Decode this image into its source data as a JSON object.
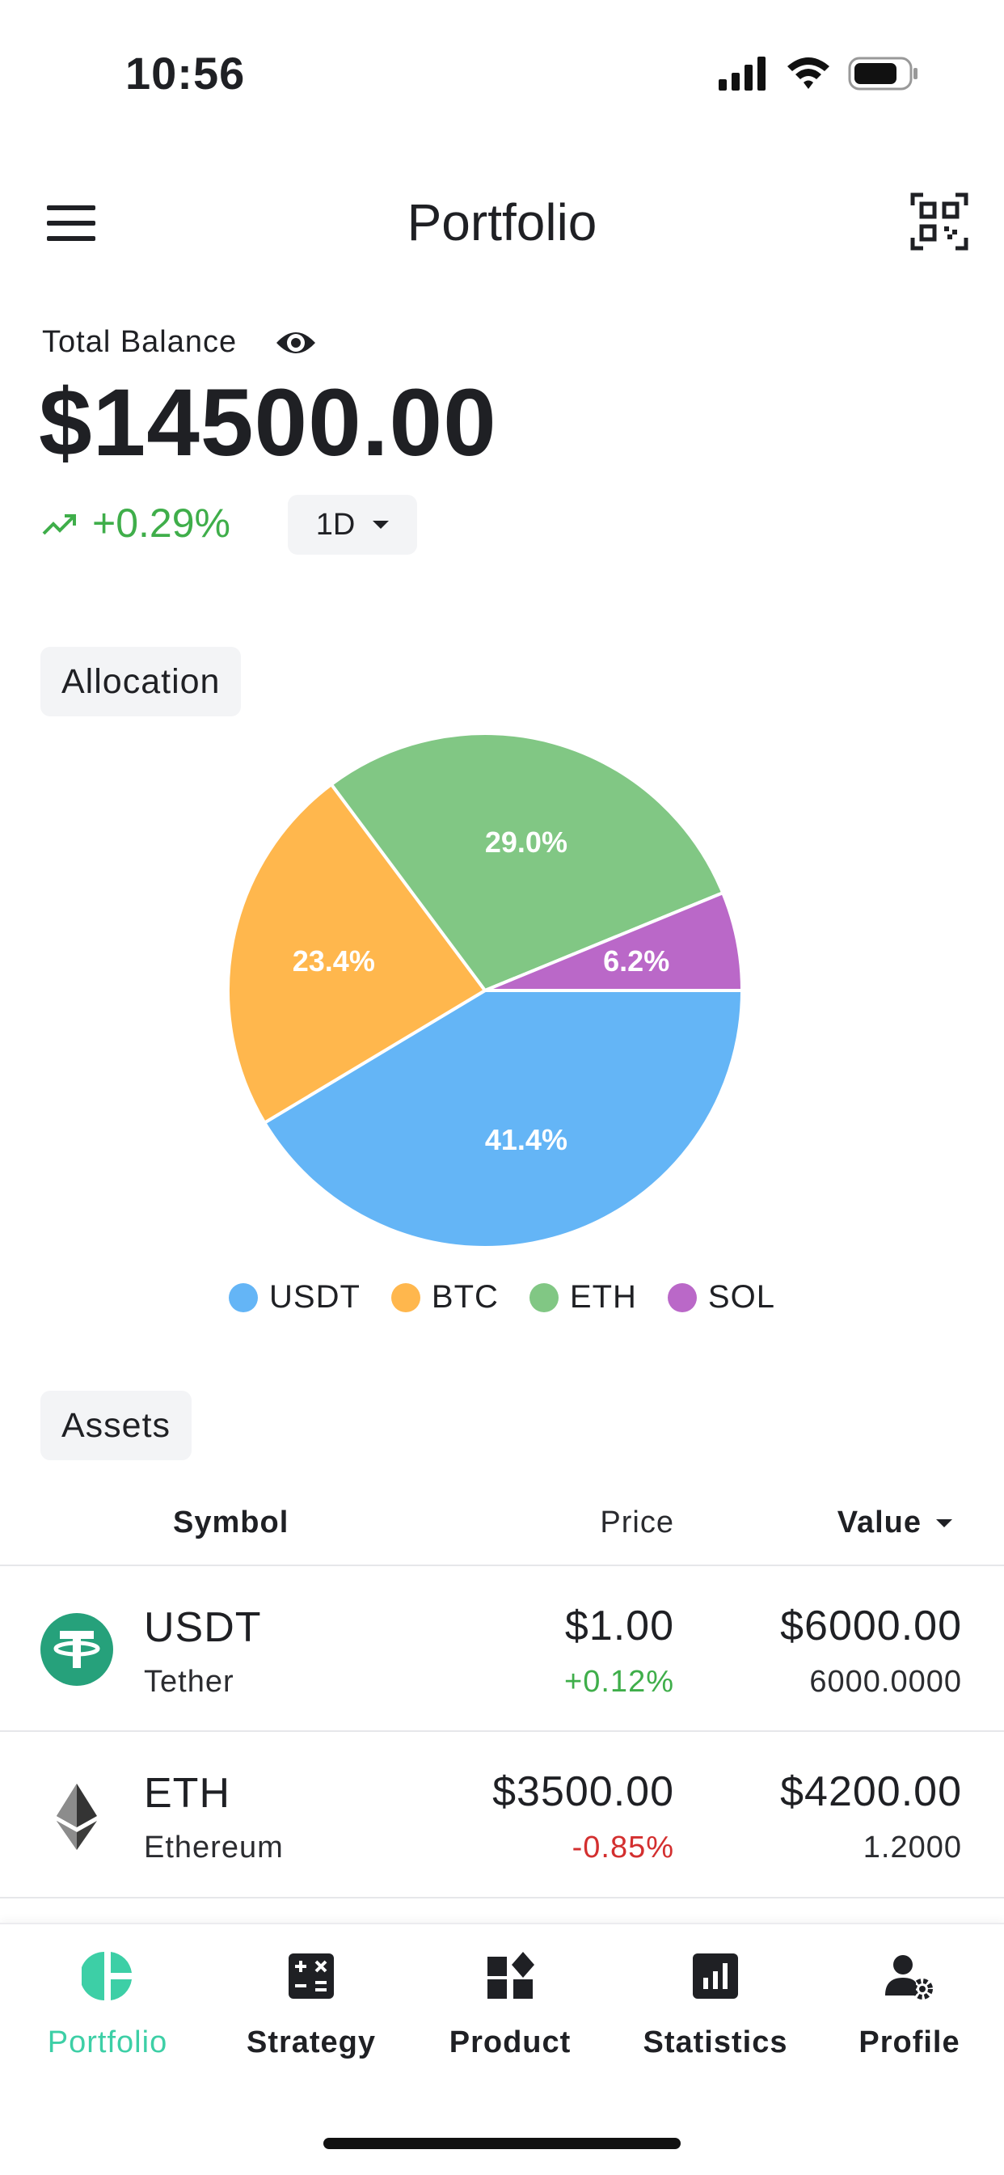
{
  "status_bar": {
    "time": "10:56"
  },
  "header": {
    "title": "Portfolio"
  },
  "balance": {
    "label": "Total Balance",
    "value": "$14500.00",
    "change": "+0.29%",
    "period": "1D"
  },
  "sections": {
    "allocation": "Allocation",
    "assets": "Assets"
  },
  "colors": {
    "usdt": "#64b5f6",
    "btc": "#ffb74d",
    "eth": "#81c784",
    "sol": "#ba68c8",
    "positive": "#3fae4a",
    "negative": "#d32f2f",
    "accent": "#3dcfa6"
  },
  "chart_data": {
    "type": "pie",
    "slices": [
      {
        "name": "USDT",
        "value": 41.4,
        "label": "41.4%"
      },
      {
        "name": "BTC",
        "value": 23.4,
        "label": "23.4%"
      },
      {
        "name": "ETH",
        "value": 29.0,
        "label": "29.0%"
      },
      {
        "name": "SOL",
        "value": 6.2,
        "label": "6.2%"
      }
    ],
    "legend": [
      "USDT",
      "BTC",
      "ETH",
      "SOL"
    ]
  },
  "table": {
    "headers": {
      "symbol": "Symbol",
      "price": "Price",
      "value": "Value"
    },
    "rows": [
      {
        "symbol": "USDT",
        "name": "Tether",
        "price": "$1.00",
        "change": "+0.12%",
        "value": "$6000.00",
        "quantity": "6000.0000",
        "icon": "tether-icon"
      },
      {
        "symbol": "ETH",
        "name": "Ethereum",
        "price": "$3500.00",
        "change": "-0.85%",
        "value": "$4200.00",
        "quantity": "1.2000",
        "icon": "ethereum-icon"
      }
    ]
  },
  "nav": [
    {
      "label": "Portfolio",
      "icon": "pie-chart-icon",
      "active": true
    },
    {
      "label": "Strategy",
      "icon": "calculator-icon",
      "active": false
    },
    {
      "label": "Product",
      "icon": "widgets-icon",
      "active": false
    },
    {
      "label": "Statistics",
      "icon": "bar-chart-icon",
      "active": false
    },
    {
      "label": "Profile",
      "icon": "user-settings-icon",
      "active": false
    }
  ]
}
